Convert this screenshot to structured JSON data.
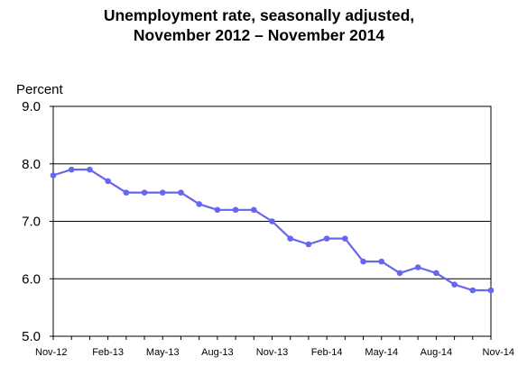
{
  "chart_data": {
    "type": "line",
    "title_lines": [
      "Unemployment rate, seasonally adjusted,",
      "November 2012 – November 2014"
    ],
    "ylabel": "Percent",
    "xlabel": "",
    "ylim": [
      5.0,
      9.0
    ],
    "yticks": [
      "9.0",
      "8.0",
      "7.0",
      "6.0",
      "5.0"
    ],
    "ytick_values": [
      9.0,
      8.0,
      7.0,
      6.0,
      5.0
    ],
    "x_tick_labels": [
      "Nov-12",
      "Feb-13",
      "May-13",
      "Aug-13",
      "Nov-13",
      "Feb-14",
      "May-14",
      "Aug-14",
      "Nov-14"
    ],
    "x_tick_label_indices": [
      0,
      3,
      6,
      9,
      12,
      15,
      18,
      21,
      24
    ],
    "x": [
      "Nov-12",
      "Dec-12",
      "Jan-13",
      "Feb-13",
      "Mar-13",
      "Apr-13",
      "May-13",
      "Jun-13",
      "Jul-13",
      "Aug-13",
      "Sep-13",
      "Oct-13",
      "Nov-13",
      "Dec-13",
      "Jan-14",
      "Feb-14",
      "Mar-14",
      "Apr-14",
      "May-14",
      "Jun-14",
      "Jul-14",
      "Aug-14",
      "Sep-14",
      "Oct-14",
      "Nov-14"
    ],
    "series": [
      {
        "values": [
          7.8,
          7.9,
          7.9,
          7.7,
          7.5,
          7.5,
          7.5,
          7.5,
          7.3,
          7.2,
          7.2,
          7.2,
          7.0,
          6.7,
          6.6,
          6.7,
          6.7,
          6.3,
          6.3,
          6.1,
          6.2,
          6.1,
          5.9,
          5.8,
          5.8
        ],
        "color": "#6666ee"
      }
    ],
    "grid": "horizontal",
    "legend": "none"
  }
}
